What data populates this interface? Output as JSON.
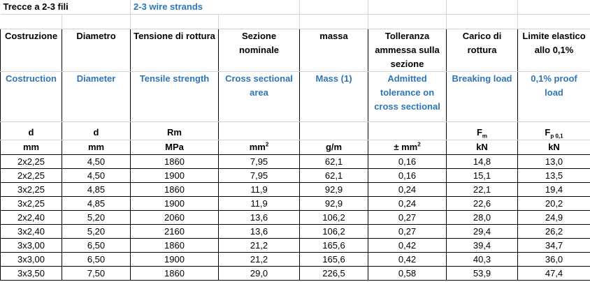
{
  "title": {
    "it": "Trecce a 2-3 fili",
    "en": "2-3 wire strands"
  },
  "columns": [
    {
      "it": "Costruzione",
      "en": "Costruction",
      "symbol": "d",
      "unit": "mm"
    },
    {
      "it": "Diametro",
      "en": "Diameter",
      "symbol": "d",
      "unit": "mm"
    },
    {
      "it": "Tensione di rottura",
      "en": "Tensile strength",
      "symbol": "Rm",
      "unit": "MPa"
    },
    {
      "it": "Sezione nominale",
      "en": "Cross sectional area",
      "symbol": "",
      "unit": "mm",
      "unit_sup": "2"
    },
    {
      "it": "massa",
      "en": "Mass (1)",
      "symbol": "",
      "unit": "g/m"
    },
    {
      "it": "Tolleranza ammessa sulla sezione",
      "en": "Admitted tolerance on cross sectional",
      "symbol": "",
      "unit": "± mm",
      "unit_sup": "2"
    },
    {
      "it": "Carico di rottura",
      "en": "Breaking load",
      "symbol": "F",
      "symbol_sub": "m",
      "unit": "kN"
    },
    {
      "it": "Limite elastico allo 0,1%",
      "en": "0,1% proof load",
      "symbol": "F",
      "symbol_sub": "p 0,1",
      "unit": "kN"
    }
  ],
  "rows": [
    [
      "2x2,25",
      "4,50",
      "1860",
      "7,95",
      "62,1",
      "0,16",
      "14,8",
      "13,0"
    ],
    [
      "2x2,25",
      "4,50",
      "1900",
      "7,95",
      "62,1",
      "0,16",
      "15,1",
      "13,5"
    ],
    [
      "3x2,25",
      "4,85",
      "1860",
      "11,9",
      "92,9",
      "0,24",
      "22,1",
      "19,4"
    ],
    [
      "3x2,25",
      "4,85",
      "1900",
      "11,9",
      "92,9",
      "0,24",
      "22,6",
      "20,2"
    ],
    [
      "2x2,40",
      "5,20",
      "2060",
      "13,6",
      "106,2",
      "0,27",
      "28,0",
      "24,9"
    ],
    [
      "3x2,40",
      "5,20",
      "2160",
      "13,6",
      "106,2",
      "0,27",
      "29,4",
      "26,2"
    ],
    [
      "3x3,00",
      "6,50",
      "1860",
      "21,2",
      "165,6",
      "0,42",
      "39,4",
      "34,7"
    ],
    [
      "3x3,00",
      "6,50",
      "1900",
      "21,2",
      "165,6",
      "0,42",
      "40,3",
      "36,0"
    ],
    [
      "3x3,50",
      "7,50",
      "1860",
      "29,0",
      "226,5",
      "0,58",
      "53,9",
      "47,4"
    ]
  ],
  "colors": {
    "english_text": "#2e75b6",
    "gridline": "#d4d4d4",
    "border": "#000000"
  }
}
